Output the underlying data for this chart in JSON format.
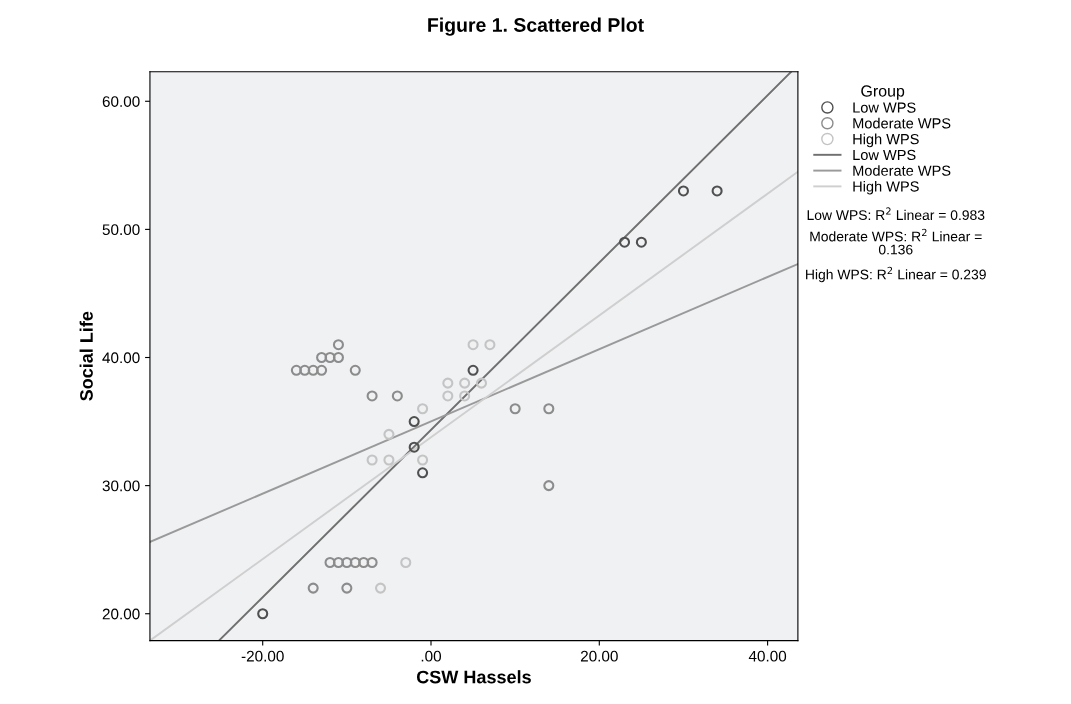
{
  "chart_data": {
    "type": "scatter",
    "title": "Figure 1. Scattered Plot",
    "xlabel": "CSW Hassels",
    "ylabel": "Social Life",
    "legend_title": "Group",
    "legend": "right",
    "grid": false,
    "xlim": [
      -33.4,
      43.6
    ],
    "ylim": [
      17.9,
      62.3
    ],
    "xticks": [
      {
        "value": -20,
        "label": "-20.00"
      },
      {
        "value": 0,
        "label": ".00"
      },
      {
        "value": 20,
        "label": "20.00"
      },
      {
        "value": 40,
        "label": "40.00"
      }
    ],
    "yticks": [
      {
        "value": 20,
        "label": "20.00"
      },
      {
        "value": 30,
        "label": "30.00"
      },
      {
        "value": 40,
        "label": "40.00"
      },
      {
        "value": 50,
        "label": "50.00"
      },
      {
        "value": 60,
        "label": "60.00"
      }
    ],
    "series": [
      {
        "name": "Low WPS",
        "marker": "circle",
        "color": "#505050",
        "x": [
          -20,
          -2,
          -2,
          -1,
          5,
          23,
          25,
          30,
          34
        ],
        "values": [
          20,
          33,
          35,
          31,
          39,
          49,
          49,
          53,
          53
        ]
      },
      {
        "name": "Moderate WPS",
        "marker": "circle",
        "color": "#8c8c8c",
        "x": [
          -11,
          -13,
          -12,
          -11,
          -16,
          -15,
          -14,
          -13,
          -9,
          -7,
          -4,
          10,
          14,
          14,
          -12,
          -11,
          -10,
          -9,
          -8,
          -7,
          -14,
          -10
        ],
        "values": [
          41,
          40,
          40,
          40,
          39,
          39,
          39,
          39,
          39,
          37,
          37,
          36,
          36,
          30,
          24,
          24,
          24,
          24,
          24,
          24,
          22,
          22
        ]
      },
      {
        "name": "High WPS",
        "marker": "circle",
        "color": "#c4c4c4",
        "x": [
          5,
          7,
          2,
          4,
          6,
          2,
          4,
          -1,
          -5,
          -7,
          -5,
          -1,
          -3,
          -6
        ],
        "values": [
          41,
          41,
          38,
          38,
          38,
          37,
          37,
          36,
          34,
          32,
          32,
          32,
          24,
          22
        ]
      },
      {
        "name": "Low WPS",
        "type": "line",
        "marker": "none",
        "color": "#707070",
        "x": [
          -25.2,
          42.8
        ],
        "values": [
          17.9,
          62.3
        ]
      },
      {
        "name": "Moderate WPS",
        "type": "line",
        "marker": "none",
        "color": "#9a9a9a",
        "x": [
          -33.4,
          43.6
        ],
        "values": [
          25.6,
          47.3
        ]
      },
      {
        "name": "High WPS",
        "type": "line",
        "marker": "none",
        "color": "#cfcfcf",
        "x": [
          -33.4,
          43.6
        ],
        "values": [
          17.9,
          54.5
        ]
      }
    ],
    "annotations": [
      "Low WPS: R$^{2}$ Linear = 0.983",
      "Moderate WPS: R$^{2}$ Linear =\n0.136",
      "High WPS: R$^{2}$ Linear = 0.239"
    ]
  }
}
